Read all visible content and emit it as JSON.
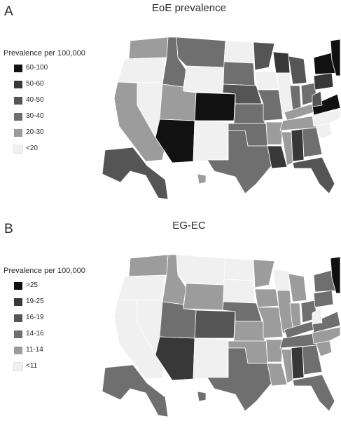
{
  "panels": [
    {
      "letter": "A",
      "title": "EoE prevalence",
      "legend_title": "Prevalence per 100,000",
      "legend": [
        {
          "label": "60-100",
          "color": "#111111"
        },
        {
          "label": "50-60",
          "color": "#383838"
        },
        {
          "label": "40-50",
          "color": "#555555"
        },
        {
          "label": "30-40",
          "color": "#6f6f6f"
        },
        {
          "label": "20-30",
          "color": "#9c9c9c"
        },
        {
          "label": "<20",
          "color": "#f0f0f0"
        }
      ],
      "state_classes": {
        "WA": 4,
        "OR": 5,
        "CA": 4,
        "NV": 5,
        "ID": 3,
        "MT": 3,
        "WY": 5,
        "UT": 4,
        "AZ": 0,
        "CO": 0,
        "NM": 5,
        "ND": 5,
        "SD": 3,
        "NE": 2,
        "KS": 3,
        "OK": 3,
        "TX": 3,
        "MN": 2,
        "IA": 5,
        "MO": 3,
        "AR": 4,
        "LA": 1,
        "WI": 1,
        "IL": 5,
        "MI": 2,
        "IN": 3,
        "OH": 3,
        "KY": 4,
        "TN": 4,
        "MS": 4,
        "AL": 1,
        "GA": 3,
        "FL": 2,
        "SC": 5,
        "NC": 5,
        "VA": 0,
        "WV": 2,
        "PA": 1,
        "NY": 0,
        "NE-US": 0,
        "AK": 2,
        "HI": 4
      }
    },
    {
      "letter": "B",
      "title": "EG-EC",
      "legend_title": "Prevalence per 100,000",
      "legend": [
        {
          "label": ">25",
          "color": "#111111"
        },
        {
          "label": "19-25",
          "color": "#383838"
        },
        {
          "label": "16-19",
          "color": "#555555"
        },
        {
          "label": "14-16",
          "color": "#6f6f6f"
        },
        {
          "label": "11-14",
          "color": "#9c9c9c"
        },
        {
          "label": "<11",
          "color": "#f0f0f0"
        }
      ],
      "state_classes": {
        "WA": 4,
        "OR": 5,
        "CA": 5,
        "NV": 5,
        "ID": 4,
        "MT": 5,
        "WY": 4,
        "UT": 3,
        "AZ": 1,
        "CO": 2,
        "NM": 5,
        "ND": 5,
        "SD": 5,
        "NE": 3,
        "KS": 4,
        "OK": 4,
        "TX": 3,
        "MN": 4,
        "IA": 4,
        "MO": 4,
        "AR": 4,
        "LA": 4,
        "WI": 5,
        "IL": 4,
        "MI": 4,
        "IN": 4,
        "OH": 3,
        "KY": 3,
        "TN": 3,
        "MS": 4,
        "AL": 1,
        "GA": 3,
        "FL": 3,
        "SC": 4,
        "NC": 4,
        "VA": 3,
        "WV": 5,
        "PA": 3,
        "NY": 3,
        "NE-US": 0,
        "AK": 3,
        "HI": 3
      }
    }
  ]
}
